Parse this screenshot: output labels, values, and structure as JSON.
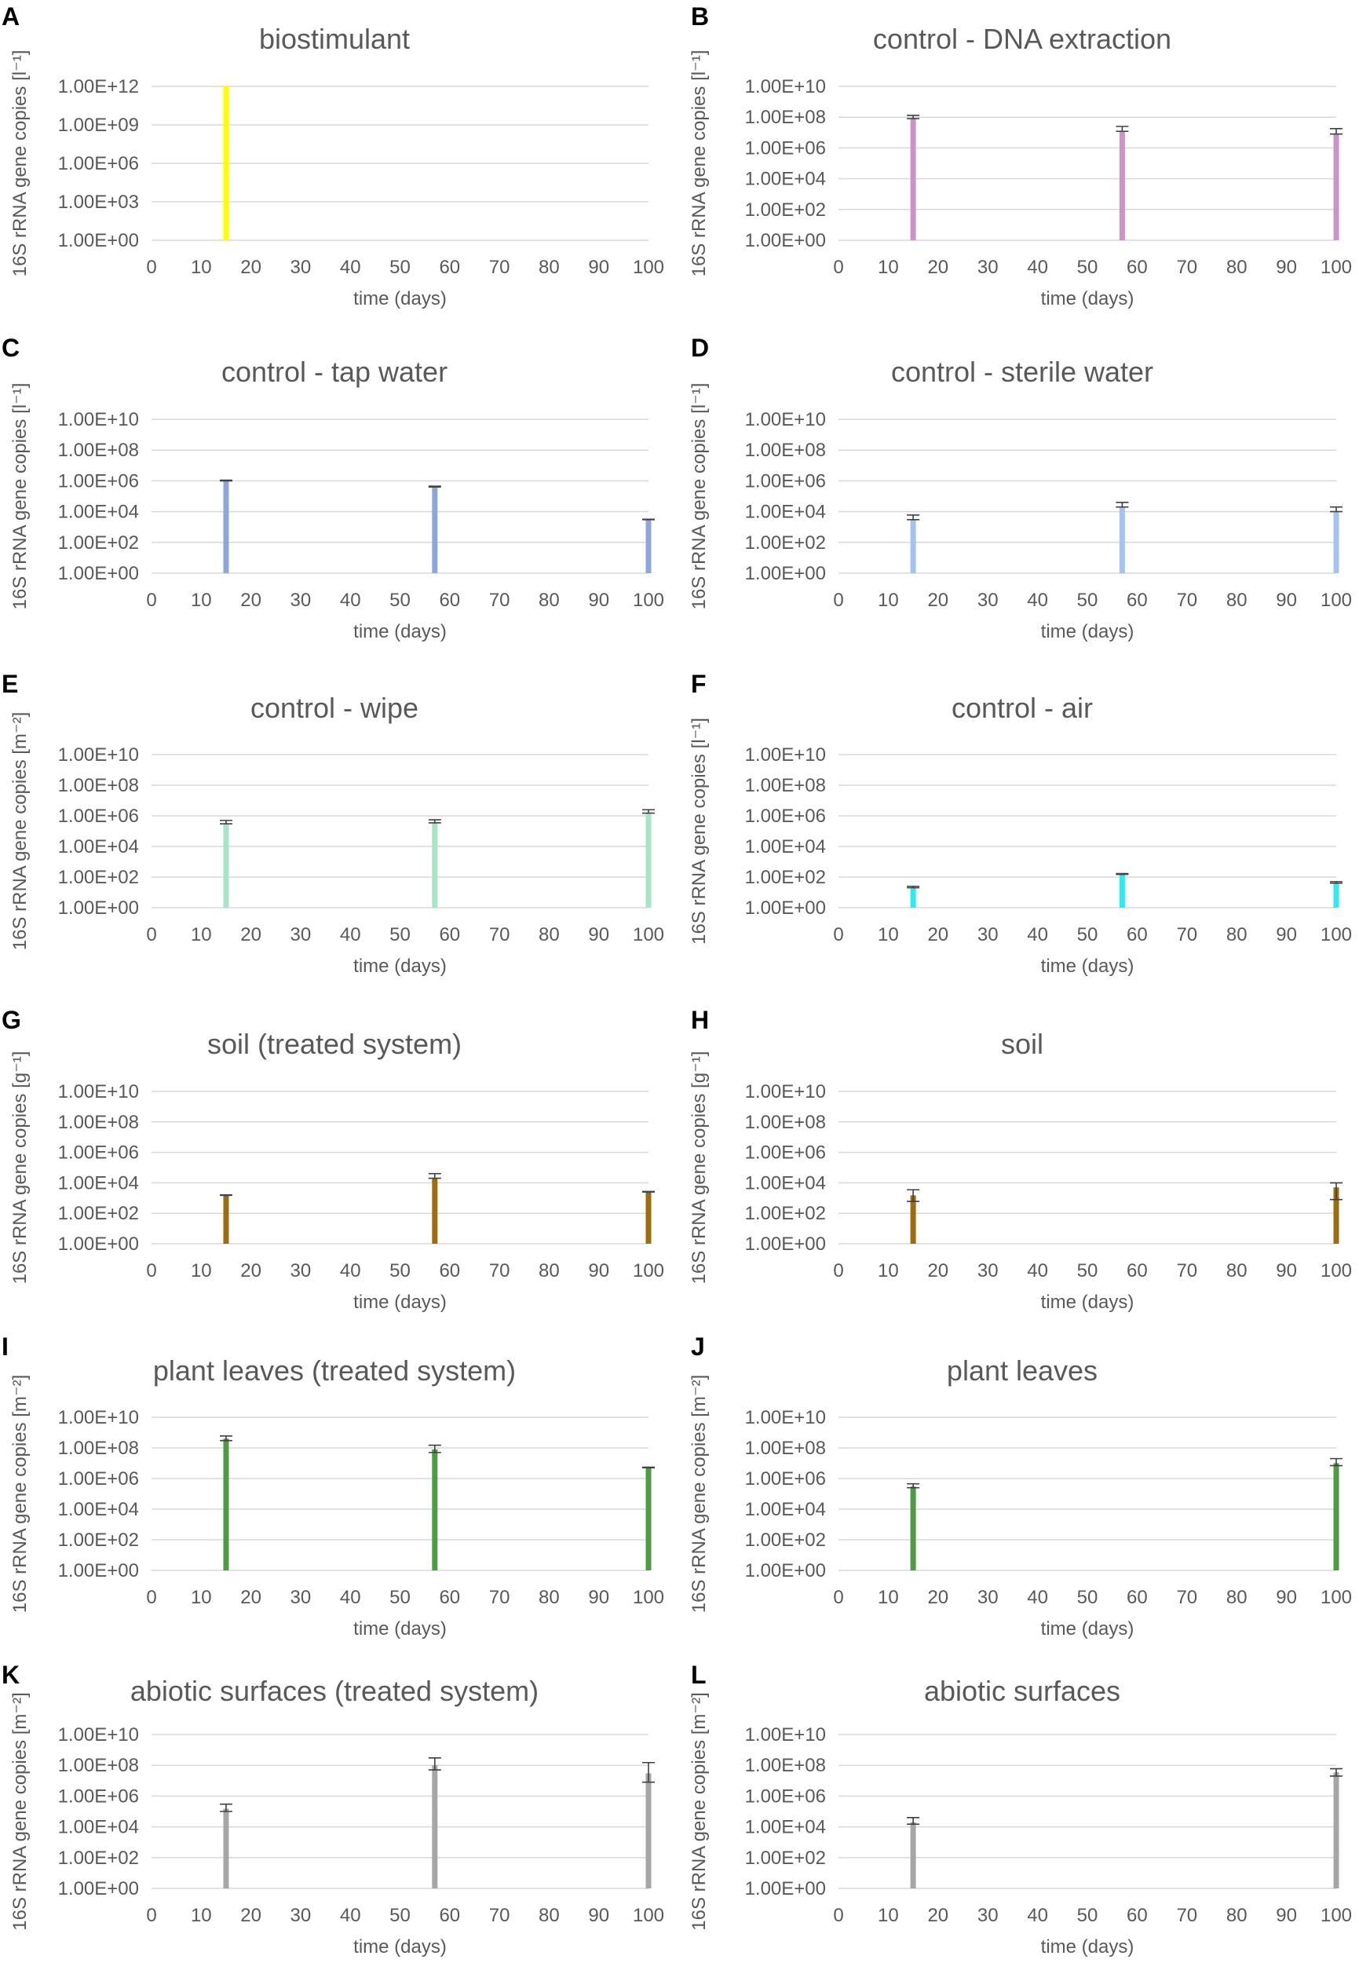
{
  "figure": {
    "panels": [
      {
        "letter": "A",
        "title": "biostimulant",
        "ylabel": "16S rRNA gene copies [l⁻¹]",
        "xlabel": "time (days)",
        "color": "#ffff00",
        "yticks": [
          "1.00E+00",
          "1.00E+03",
          "1.00E+06",
          "1.00E+09",
          "1.00E+12"
        ],
        "xticks": [
          "0",
          "10",
          "20",
          "30",
          "40",
          "50",
          "60",
          "70",
          "80",
          "90",
          "100"
        ],
        "chart_data": {
          "type": "bar",
          "x": [
            15
          ],
          "values": [
            1000000000000.0
          ],
          "err_low": [
            null
          ],
          "err_high": [
            null
          ],
          "xlim": [
            0,
            100
          ],
          "ylim": [
            1,
            1000000000000.0
          ],
          "yscale": "log",
          "grid": true,
          "error_bars": false
        }
      },
      {
        "letter": "B",
        "title": "control - DNA extraction",
        "ylabel": "16S rRNA gene copies [l⁻¹]",
        "xlabel": "time (days)",
        "color": "#c994c7",
        "yticks": [
          "1.00E+00",
          "1.00E+02",
          "1.00E+04",
          "1.00E+06",
          "1.00E+08",
          "1.00E+10"
        ],
        "xticks": [
          "0",
          "10",
          "20",
          "30",
          "40",
          "50",
          "60",
          "70",
          "80",
          "90",
          "100"
        ],
        "chart_data": {
          "type": "bar",
          "x": [
            15,
            57,
            100
          ],
          "values": [
            80000000,
            12000000,
            8000000
          ],
          "err_low": [
            80000000,
            12000000,
            8000000
          ],
          "err_high": [
            130000000,
            25000000,
            18000000
          ],
          "xlim": [
            0,
            100
          ],
          "ylim": [
            1,
            10000000000.0
          ],
          "yscale": "log",
          "grid": true,
          "error_bars": true
        }
      },
      {
        "letter": "C",
        "title": "control - tap water",
        "ylabel": "16S rRNA gene copies [l⁻¹]",
        "xlabel": "time (days)",
        "color": "#8fa6dc",
        "yticks": [
          "1.00E+00",
          "1.00E+02",
          "1.00E+04",
          "1.00E+06",
          "1.00E+08",
          "1.00E+10"
        ],
        "xticks": [
          "0",
          "10",
          "20",
          "30",
          "40",
          "50",
          "60",
          "70",
          "80",
          "90",
          "100"
        ],
        "chart_data": {
          "type": "bar",
          "x": [
            15,
            57,
            100
          ],
          "values": [
            1000000,
            400000,
            3000
          ],
          "err_low": [
            1000000,
            400000,
            3000
          ],
          "err_high": [
            1100000,
            450000,
            3200
          ],
          "xlim": [
            0,
            100
          ],
          "ylim": [
            1,
            10000000000.0
          ],
          "yscale": "log",
          "grid": true,
          "error_bars": true
        }
      },
      {
        "letter": "D",
        "title": "control - sterile water",
        "ylabel": "16S rRNA gene copies [l⁻¹]",
        "xlabel": "time (days)",
        "color": "#a6c3ef",
        "yticks": [
          "1.00E+00",
          "1.00E+02",
          "1.00E+04",
          "1.00E+06",
          "1.00E+08",
          "1.00E+10"
        ],
        "xticks": [
          "0",
          "10",
          "20",
          "30",
          "40",
          "50",
          "60",
          "70",
          "80",
          "90",
          "100"
        ],
        "chart_data": {
          "type": "bar",
          "x": [
            15,
            57,
            100
          ],
          "values": [
            3000,
            20000,
            10000
          ],
          "err_low": [
            3000,
            20000,
            10000
          ],
          "err_high": [
            6000,
            40000,
            20000
          ],
          "xlim": [
            0,
            100
          ],
          "ylim": [
            1,
            10000000000.0
          ],
          "yscale": "log",
          "grid": true,
          "error_bars": true
        }
      },
      {
        "letter": "E",
        "title": "control - wipe",
        "ylabel": "16S rRNA gene copies [m⁻²]",
        "xlabel": "time (days)",
        "color": "#a9e4c6",
        "yticks": [
          "1.00E+00",
          "1.00E+02",
          "1.00E+04",
          "1.00E+06",
          "1.00E+08",
          "1.00E+10"
        ],
        "xticks": [
          "0",
          "10",
          "20",
          "30",
          "40",
          "50",
          "60",
          "70",
          "80",
          "90",
          "100"
        ],
        "chart_data": {
          "type": "bar",
          "x": [
            15,
            57,
            100
          ],
          "values": [
            300000,
            350000,
            1500000
          ],
          "err_low": [
            300000,
            350000,
            1500000
          ],
          "err_high": [
            500000,
            550000,
            2500000
          ],
          "xlim": [
            0,
            100
          ],
          "ylim": [
            1,
            10000000000.0
          ],
          "yscale": "log",
          "grid": true,
          "error_bars": true
        }
      },
      {
        "letter": "F",
        "title": "control - air",
        "ylabel": "16S rRNA gene copies [l⁻¹]",
        "xlabel": "time (days)",
        "color": "#33e8ee",
        "yticks": [
          "1.00E+00",
          "1.00E+02",
          "1.00E+04",
          "1.00E+06",
          "1.00E+08",
          "1.00E+10"
        ],
        "xticks": [
          "0",
          "10",
          "20",
          "30",
          "40",
          "50",
          "60",
          "70",
          "80",
          "90",
          "100"
        ],
        "chart_data": {
          "type": "bar",
          "x": [
            15,
            57,
            100
          ],
          "values": [
            20,
            150,
            40
          ],
          "err_low": [
            20,
            150,
            40
          ],
          "err_high": [
            25,
            170,
            50
          ],
          "xlim": [
            0,
            100
          ],
          "ylim": [
            1,
            10000000000.0
          ],
          "yscale": "log",
          "grid": true,
          "error_bars": true
        }
      },
      {
        "letter": "G",
        "title": "soil (treated system)",
        "ylabel": "16S rRNA gene copies [g⁻¹]",
        "xlabel": "time (days)",
        "color": "#9c6b12",
        "yticks": [
          "1.00E+00",
          "1.00E+02",
          "1.00E+04",
          "1.00E+06",
          "1.00E+08",
          "1.00E+10"
        ],
        "xticks": [
          "0",
          "10",
          "20",
          "30",
          "40",
          "50",
          "60",
          "70",
          "80",
          "90",
          "100"
        ],
        "chart_data": {
          "type": "bar",
          "x": [
            15,
            57,
            100
          ],
          "values": [
            1500,
            20000,
            2500
          ],
          "err_low": [
            1500,
            20000,
            2500
          ],
          "err_high": [
            1600,
            40000,
            2700
          ],
          "xlim": [
            0,
            100
          ],
          "ylim": [
            1,
            10000000000.0
          ],
          "yscale": "log",
          "grid": true,
          "error_bars": true
        }
      },
      {
        "letter": "H",
        "title": "soil",
        "ylabel": "16S rRNA gene copies [g⁻¹]",
        "xlabel": "time (days)",
        "color": "#9c6b12",
        "yticks": [
          "1.00E+00",
          "1.00E+02",
          "1.00E+04",
          "1.00E+06",
          "1.00E+08",
          "1.00E+10"
        ],
        "xticks": [
          "0",
          "10",
          "20",
          "30",
          "40",
          "50",
          "60",
          "70",
          "80",
          "90",
          "100"
        ],
        "chart_data": {
          "type": "bar",
          "x": [
            15,
            100
          ],
          "values": [
            1500,
            5000
          ],
          "err_low": [
            600,
            800
          ],
          "err_high": [
            3500,
            10000
          ],
          "xlim": [
            0,
            100
          ],
          "ylim": [
            1,
            10000000000.0
          ],
          "yscale": "log",
          "grid": true,
          "error_bars": true
        }
      },
      {
        "letter": "I",
        "title": "plant leaves (treated system)",
        "ylabel": "16S rRNA gene copies [m⁻²]",
        "xlabel": "time (days)",
        "color": "#4f9a44",
        "yticks": [
          "1.00E+00",
          "1.00E+02",
          "1.00E+04",
          "1.00E+06",
          "1.00E+08",
          "1.00E+10"
        ],
        "xticks": [
          "0",
          "10",
          "20",
          "30",
          "40",
          "50",
          "60",
          "70",
          "80",
          "90",
          "100"
        ],
        "chart_data": {
          "type": "bar",
          "x": [
            15,
            57,
            100
          ],
          "values": [
            400000000,
            80000000,
            5000000
          ],
          "err_low": [
            300000000,
            50000000,
            5000000
          ],
          "err_high": [
            600000000,
            150000000,
            5500000
          ],
          "xlim": [
            0,
            100
          ],
          "ylim": [
            1,
            10000000000.0
          ],
          "yscale": "log",
          "grid": true,
          "error_bars": true
        }
      },
      {
        "letter": "J",
        "title": "plant leaves",
        "ylabel": "16S rRNA gene copies [m⁻²]",
        "xlabel": "time (days)",
        "color": "#4f9a44",
        "yticks": [
          "1.00E+00",
          "1.00E+02",
          "1.00E+04",
          "1.00E+06",
          "1.00E+08",
          "1.00E+10"
        ],
        "xticks": [
          "0",
          "10",
          "20",
          "30",
          "40",
          "50",
          "60",
          "70",
          "80",
          "90",
          "100"
        ],
        "chart_data": {
          "type": "bar",
          "x": [
            15,
            100
          ],
          "values": [
            300000,
            10000000
          ],
          "err_low": [
            250000,
            7000000
          ],
          "err_high": [
            450000,
            20000000
          ],
          "xlim": [
            0,
            100
          ],
          "ylim": [
            1,
            10000000000.0
          ],
          "yscale": "log",
          "grid": true,
          "error_bars": true
        }
      },
      {
        "letter": "K",
        "title": "abiotic surfaces (treated system)",
        "ylabel": "16S rRNA gene copies [m⁻²]",
        "xlabel": "time (days)",
        "color": "#a6a6a6",
        "yticks": [
          "1.00E+00",
          "1.00E+02",
          "1.00E+04",
          "1.00E+06",
          "1.00E+08",
          "1.00E+10"
        ],
        "xticks": [
          "0",
          "10",
          "20",
          "30",
          "40",
          "50",
          "60",
          "70",
          "80",
          "90",
          "100"
        ],
        "chart_data": {
          "type": "bar",
          "x": [
            15,
            57,
            100
          ],
          "values": [
            150000,
            100000000,
            30000000
          ],
          "err_low": [
            100000,
            50000000,
            8000000
          ],
          "err_high": [
            300000,
            300000000,
            150000000
          ],
          "xlim": [
            0,
            100
          ],
          "ylim": [
            1,
            10000000000.0
          ],
          "yscale": "log",
          "grid": true,
          "error_bars": true
        }
      },
      {
        "letter": "L",
        "title": "abiotic surfaces",
        "ylabel": "16S rRNA gene copies [m⁻²]",
        "xlabel": "time (days)",
        "color": "#a6a6a6",
        "yticks": [
          "1.00E+00",
          "1.00E+02",
          "1.00E+04",
          "1.00E+06",
          "1.00E+08",
          "1.00E+10"
        ],
        "xticks": [
          "0",
          "10",
          "20",
          "30",
          "40",
          "50",
          "60",
          "70",
          "80",
          "90",
          "100"
        ],
        "chart_data": {
          "type": "bar",
          "x": [
            15,
            100
          ],
          "values": [
            20000,
            35000000
          ],
          "err_low": [
            15000,
            20000000
          ],
          "err_high": [
            40000,
            60000000
          ],
          "xlim": [
            0,
            100
          ],
          "ylim": [
            1,
            10000000000.0
          ],
          "yscale": "log",
          "grid": true,
          "error_bars": true
        }
      }
    ]
  }
}
